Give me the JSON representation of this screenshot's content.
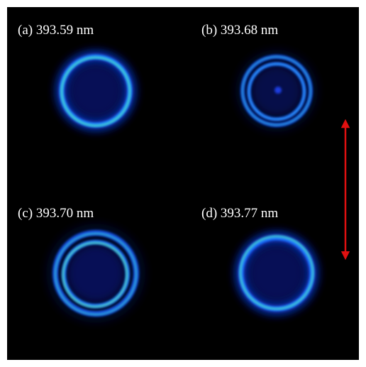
{
  "panels": [
    {
      "label": "(a) 393.59 nm"
    },
    {
      "label": "(b) 393.68 nm"
    },
    {
      "label": "(c) 393.70 nm"
    },
    {
      "label": "(d) 393.77 nm"
    }
  ]
}
